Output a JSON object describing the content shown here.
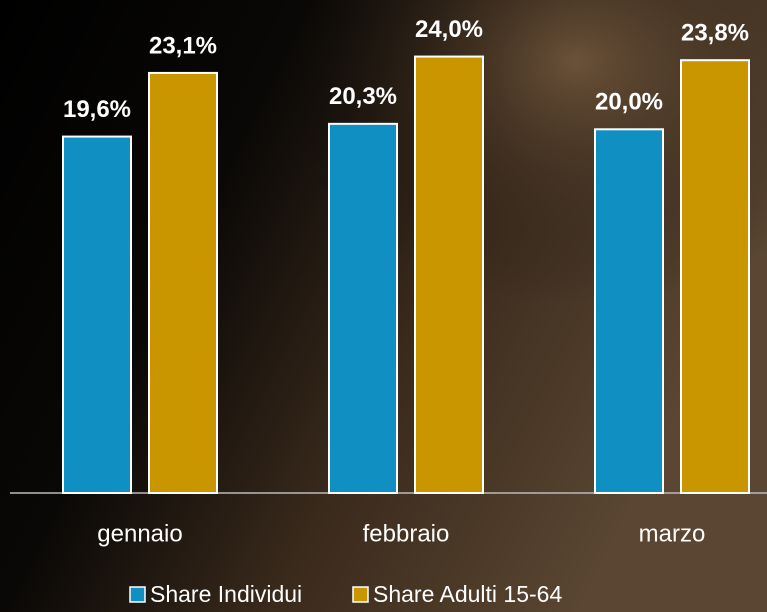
{
  "chart_data": {
    "type": "bar",
    "categories": [
      "gennaio",
      "febbraio",
      "marzo"
    ],
    "series": [
      {
        "name": "Share Individui",
        "color": "#0f8fc2",
        "values": [
          19.6,
          20.3,
          20.0
        ],
        "value_labels": [
          "19,6%",
          "20,3%",
          "20,0%"
        ]
      },
      {
        "name": "Share Adulti 15-64",
        "color": "#c99600",
        "values": [
          23.1,
          24.0,
          23.8
        ],
        "value_labels": [
          "23,1%",
          "24,0%",
          "23,8%"
        ]
      }
    ],
    "ylim": [
      0,
      27
    ]
  }
}
